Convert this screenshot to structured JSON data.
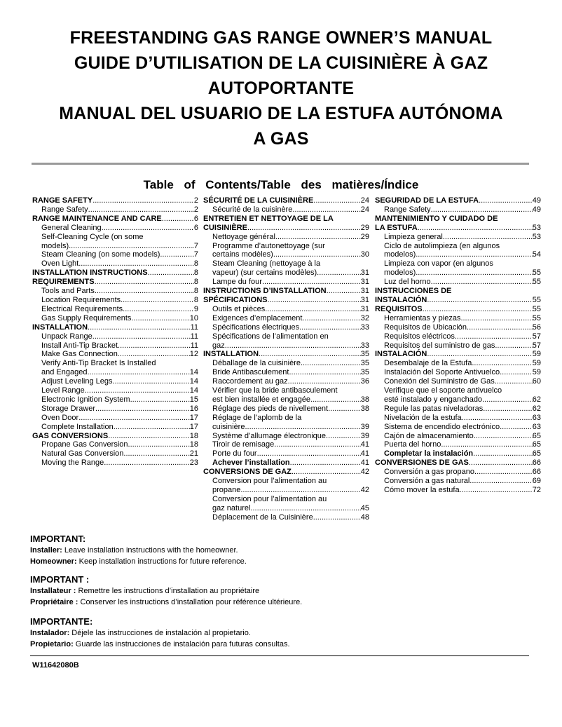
{
  "title_lines": [
    "FREESTANDING GAS RANGE OWNER’S MANUAL",
    "GUIDE D’UTILISATION DE LA CUISINIÈRE À GAZ",
    "AUTOPORTANTE",
    "MANUAL DEL USUARIO DE LA ESTUFA AUTÓNOMA",
    "A GAS"
  ],
  "toc_heading": "Table of Contents/Table des matières/Índice",
  "toc_columns": [
    [
      {
        "label": "RANGE SAFETY",
        "page": "2",
        "bold": true
      },
      {
        "label": "Range Safety",
        "page": "2",
        "indent": true
      },
      {
        "label": "RANGE MAINTENANCE AND CARE",
        "page": "6",
        "bold": true
      },
      {
        "label": "General Cleaning",
        "page": "6",
        "indent": true
      },
      {
        "label": "Self-Cleaning Cycle (on some",
        "indent": true
      },
      {
        "label": "models)",
        "page": "7",
        "indent": true
      },
      {
        "label": "Steam Cleaning (on some models)",
        "page": "7",
        "indent": true
      },
      {
        "label": "Oven Light",
        "page": "8",
        "indent": true
      },
      {
        "label": "INSTALLATION INSTRUCTIONS",
        "page": "8",
        "bold": true
      },
      {
        "label": "REQUIREMENTS",
        "page": "8",
        "bold": true
      },
      {
        "label": "Tools and Parts",
        "page": "8",
        "indent": true
      },
      {
        "label": "Location Requirements",
        "page": "8",
        "indent": true
      },
      {
        "label": "Electrical Requirements",
        "page": "9",
        "indent": true
      },
      {
        "label": "Gas Supply Requirements",
        "page": "10",
        "indent": true
      },
      {
        "label": "INSTALLATION",
        "page": "11",
        "bold": true
      },
      {
        "label": "Unpack Range",
        "page": "11",
        "indent": true
      },
      {
        "label": "Install Anti-Tip Bracket",
        "page": "11",
        "indent": true
      },
      {
        "label": "Make Gas Connection",
        "page": "12",
        "indent": true
      },
      {
        "label": "Verify Anti-Tip Bracket Is Installed",
        "indent": true
      },
      {
        "label": "and Engaged",
        "page": "14",
        "indent": true
      },
      {
        "label": "Adjust Leveling Legs",
        "page": "14",
        "indent": true
      },
      {
        "label": "Level Range",
        "page": "14",
        "indent": true
      },
      {
        "label": "Electronic Ignition System",
        "page": "15",
        "indent": true
      },
      {
        "label": "Storage Drawer",
        "page": "16",
        "indent": true
      },
      {
        "label": "Oven Door",
        "page": "17",
        "indent": true
      },
      {
        "label": "Complete Installation",
        "page": "17",
        "indent": true
      },
      {
        "label": "GAS CONVERSIONS",
        "page": "18",
        "bold": true
      },
      {
        "label": "Propane Gas Conversion",
        "page": "18",
        "indent": true
      },
      {
        "label": "Natural Gas Conversion",
        "page": "21",
        "indent": true
      },
      {
        "label": "Moving the Range",
        "page": "23",
        "indent": true
      }
    ],
    [
      {
        "label": "SÉCURITÉ DE LA CUISINIÈRE",
        "page": "24",
        "bold": true
      },
      {
        "label": "Sécurité de la cuisinère",
        "page": "24",
        "indent": true
      },
      {
        "label": "ENTRETIEN ET NETTOYAGE DE LA",
        "bold": true
      },
      {
        "label": "CUISINIÈRE",
        "page": "29",
        "bold": true
      },
      {
        "label": "Nettoyage général",
        "page": "29",
        "indent": true
      },
      {
        "label": "Programme d’autonettoyage (sur",
        "indent": true
      },
      {
        "label": "certains modèles)",
        "page": "30",
        "indent": true
      },
      {
        "label": "Steam Cleaning (nettoyage à la",
        "indent": true
      },
      {
        "label": "vapeur) (sur certains modèles)",
        "page": "31",
        "indent": true
      },
      {
        "label": "Lampe du four",
        "page": "31",
        "indent": true
      },
      {
        "label": "INSTRUCTIONS D’INSTALLATION",
        "page": "31",
        "bold": true
      },
      {
        "label": "SPÉCIFICATIONS",
        "page": "31",
        "bold": true
      },
      {
        "label": "Outils et pièces",
        "page": "31",
        "indent": true
      },
      {
        "label": "Exigences d’emplacement",
        "page": "32",
        "indent": true
      },
      {
        "label": "Spécifications électriques",
        "page": "33",
        "indent": true
      },
      {
        "label": "Spécifications de l’alimentation en",
        "indent": true
      },
      {
        "label": "gaz",
        "page": "33",
        "indent": true
      },
      {
        "label": "INSTALLATION",
        "page": "35",
        "bold": true
      },
      {
        "label": "Déballage de la cuisinière",
        "page": "35",
        "indent": true
      },
      {
        "label": "Bride Antibasculement",
        "page": "35",
        "indent": true
      },
      {
        "label": "Raccordement au gaz",
        "page": "36",
        "indent": true
      },
      {
        "label": "Vérifier que la bride antibasculement",
        "indent": true
      },
      {
        "label": "est bien installée et engagée",
        "page": "38",
        "indent": true
      },
      {
        "label": "Réglage des pieds de nivellement",
        "page": "38",
        "indent": true
      },
      {
        "label": "Réglage de l’aplomb de la",
        "indent": true
      },
      {
        "label": "cuisinière",
        "page": "39",
        "indent": true
      },
      {
        "label": "Système d’allumage électronique",
        "page": "39",
        "indent": true
      },
      {
        "label": "Tiroir de remisage",
        "page": "41",
        "indent": true
      },
      {
        "label": "Porte du four",
        "page": "41",
        "indent": true
      },
      {
        "label": "Achever l’installation",
        "page": "41",
        "indent": true,
        "bold": true
      },
      {
        "label": "CONVERSIONS DE GAZ",
        "page": "42",
        "bold": true
      },
      {
        "label": "Conversion pour l’alimentation au",
        "indent": true
      },
      {
        "label": "propane",
        "page": "42",
        "indent": true
      },
      {
        "label": "Conversion pour l’alimentation au",
        "indent": true
      },
      {
        "label": "gaz naturel",
        "page": "45",
        "indent": true
      },
      {
        "label": "Déplacement de la Cuisinière",
        "page": "48",
        "indent": true
      }
    ],
    [
      {
        "label": "SEGURIDAD DE LA ESTUFA",
        "page": "49",
        "bold": true
      },
      {
        "label": "Range Safety",
        "page": "49",
        "indent": true
      },
      {
        "label": "MANTENIMIENTO Y CUIDADO DE",
        "bold": true
      },
      {
        "label": "LA ESTUFA",
        "page": "53",
        "bold": true
      },
      {
        "label": "Limpieza general",
        "page": "53",
        "indent": true
      },
      {
        "label": "Ciclo de autolimpieza (en algunos",
        "indent": true
      },
      {
        "label": "modelos)",
        "page": "54",
        "indent": true
      },
      {
        "label": "Limpieza con vapor (en algunos",
        "indent": true
      },
      {
        "label": "modelos)",
        "page": "55",
        "indent": true
      },
      {
        "label": "Luz del horno",
        "page": "55",
        "indent": true
      },
      {
        "label": "INSTRUCCIONES DE",
        "bold": true
      },
      {
        "label": "INSTALACIÓN",
        "page": "55",
        "bold": true
      },
      {
        "label": "REQUISITOS",
        "page": "55",
        "bold": true
      },
      {
        "label": "Herramientas y piezas",
        "page": "55",
        "indent": true
      },
      {
        "label": "Requisitos de Ubicación",
        "page": "56",
        "indent": true
      },
      {
        "label": "Requisitos eléctricos",
        "page": "57",
        "indent": true
      },
      {
        "label": "Requisitos del suministro de gas",
        "page": "57",
        "indent": true
      },
      {
        "label": "INSTALACIÓN",
        "page": "59",
        "bold": true
      },
      {
        "label": "Desembalaje de la Estufa",
        "page": "59",
        "indent": true
      },
      {
        "label": "Instalación del Soporte Antivuelco",
        "page": "59",
        "indent": true
      },
      {
        "label": "Conexión del Suministro de Gas",
        "page": "60",
        "indent": true
      },
      {
        "label": "Verifique que el soporte antivuelco",
        "indent": true
      },
      {
        "label": "esté instalado y enganchado",
        "page": "62",
        "indent": true
      },
      {
        "label": "Regule las patas niveladoras",
        "page": "62",
        "indent": true
      },
      {
        "label": "Nivelación de la estufa",
        "page": "63",
        "indent": true
      },
      {
        "label": "Sistema de encendido electrónico",
        "page": "63",
        "indent": true
      },
      {
        "label": "Cajón de almacenamiento",
        "page": "65",
        "indent": true
      },
      {
        "label": "Puerta del horno",
        "page": "65",
        "indent": true
      },
      {
        "label": "Completar la instalación",
        "page": "65",
        "indent": true,
        "bold": true
      },
      {
        "label": "CONVERSIONES DE GAS",
        "page": "66",
        "bold": true
      },
      {
        "label": "Conversión a gas propano",
        "page": "66",
        "indent": true
      },
      {
        "label": "Conversión a gas natural",
        "page": "69",
        "indent": true
      },
      {
        "label": "Cómo mover la estufa",
        "page": "72",
        "indent": true
      }
    ]
  ],
  "important": [
    {
      "heading": "IMPORTANT:",
      "lines": [
        {
          "label": "Installer:",
          "text": " Leave installation instructions with the homeowner."
        },
        {
          "label": "Homeowner:",
          "text": " Keep installation instructions for future reference."
        }
      ]
    },
    {
      "heading": "IMPORTANT :",
      "lines": [
        {
          "label": "Installateur :",
          "text": " Remettre les instructions d’installation au propriétaire"
        },
        {
          "label": "Propriétaire :",
          "text": " Conserver les instructions d’installation pour référence ultérieure."
        }
      ]
    },
    {
      "heading": "IMPORTANTE:",
      "lines": [
        {
          "label": "Instalador:",
          "text": " Déjele las instrucciones de instalación al propietario."
        },
        {
          "label": "Propietario:",
          "text": " Guarde las instrucciones de instalación para futuras consultas."
        }
      ]
    }
  ],
  "document_code": "W11642080B",
  "colors": {
    "rule": "#9a9a9a",
    "text": "#000000"
  }
}
